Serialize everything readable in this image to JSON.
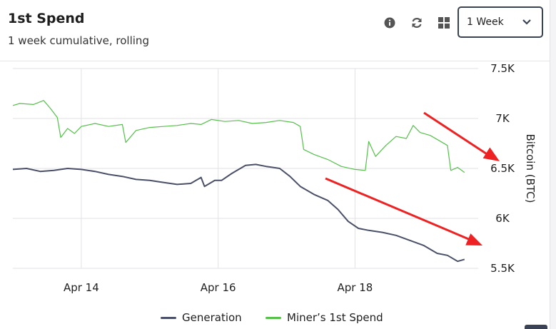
{
  "header": {
    "title": "1st Spend",
    "subtitle": "1 week cumulative, rolling",
    "icons": [
      "info-icon",
      "refresh-icon",
      "grid-icon"
    ],
    "period_select": {
      "value": "1 Week"
    }
  },
  "chart_data": {
    "type": "line",
    "ylabel": "Bitcoin (BTC)",
    "ylim": [
      5500,
      7500
    ],
    "y_ticks": [
      {
        "value": 7500,
        "label": "7.5K"
      },
      {
        "value": 7000,
        "label": "7K"
      },
      {
        "value": 6500,
        "label": "6.5K"
      },
      {
        "value": 6000,
        "label": "6K"
      },
      {
        "value": 5500,
        "label": "5.5K"
      }
    ],
    "xlim": [
      13.0,
      19.8
    ],
    "x_ticks": [
      {
        "value": 14,
        "label": "Apr 14"
      },
      {
        "value": 16,
        "label": "Apr 16"
      },
      {
        "value": 18,
        "label": "Apr 18"
      }
    ],
    "grid": true,
    "legend_position": "bottom",
    "series": [
      {
        "name": "Generation",
        "color": "#4a5068",
        "points": [
          [
            13.0,
            6490
          ],
          [
            13.2,
            6500
          ],
          [
            13.4,
            6470
          ],
          [
            13.6,
            6480
          ],
          [
            13.8,
            6500
          ],
          [
            14.0,
            6490
          ],
          [
            14.2,
            6470
          ],
          [
            14.4,
            6440
          ],
          [
            14.6,
            6420
          ],
          [
            14.8,
            6390
          ],
          [
            15.0,
            6380
          ],
          [
            15.2,
            6360
          ],
          [
            15.4,
            6340
          ],
          [
            15.6,
            6350
          ],
          [
            15.75,
            6410
          ],
          [
            15.8,
            6320
          ],
          [
            15.95,
            6380
          ],
          [
            16.05,
            6380
          ],
          [
            16.2,
            6450
          ],
          [
            16.4,
            6530
          ],
          [
            16.55,
            6540
          ],
          [
            16.7,
            6520
          ],
          [
            16.9,
            6500
          ],
          [
            17.05,
            6420
          ],
          [
            17.2,
            6320
          ],
          [
            17.4,
            6240
          ],
          [
            17.6,
            6180
          ],
          [
            17.75,
            6090
          ],
          [
            17.9,
            5970
          ],
          [
            18.05,
            5900
          ],
          [
            18.2,
            5880
          ],
          [
            18.4,
            5860
          ],
          [
            18.6,
            5830
          ],
          [
            18.8,
            5780
          ],
          [
            19.0,
            5730
          ],
          [
            19.2,
            5650
          ],
          [
            19.35,
            5630
          ],
          [
            19.5,
            5570
          ],
          [
            19.6,
            5590
          ]
        ]
      },
      {
        "name": "Miner’s 1st Spend",
        "color": "#55c04a",
        "points": [
          [
            13.0,
            7130
          ],
          [
            13.1,
            7150
          ],
          [
            13.3,
            7140
          ],
          [
            13.45,
            7180
          ],
          [
            13.55,
            7100
          ],
          [
            13.65,
            7010
          ],
          [
            13.7,
            6810
          ],
          [
            13.8,
            6900
          ],
          [
            13.9,
            6850
          ],
          [
            14.0,
            6920
          ],
          [
            14.2,
            6950
          ],
          [
            14.4,
            6920
          ],
          [
            14.6,
            6940
          ],
          [
            14.65,
            6760
          ],
          [
            14.8,
            6880
          ],
          [
            15.0,
            6910
          ],
          [
            15.2,
            6920
          ],
          [
            15.4,
            6930
          ],
          [
            15.6,
            6950
          ],
          [
            15.75,
            6940
          ],
          [
            15.9,
            6990
          ],
          [
            16.1,
            6970
          ],
          [
            16.3,
            6980
          ],
          [
            16.5,
            6950
          ],
          [
            16.7,
            6960
          ],
          [
            16.9,
            6980
          ],
          [
            17.1,
            6960
          ],
          [
            17.2,
            6920
          ],
          [
            17.25,
            6690
          ],
          [
            17.4,
            6640
          ],
          [
            17.6,
            6590
          ],
          [
            17.8,
            6520
          ],
          [
            18.0,
            6490
          ],
          [
            18.15,
            6480
          ],
          [
            18.2,
            6770
          ],
          [
            18.3,
            6620
          ],
          [
            18.45,
            6730
          ],
          [
            18.6,
            6820
          ],
          [
            18.75,
            6800
          ],
          [
            18.85,
            6930
          ],
          [
            18.95,
            6860
          ],
          [
            19.1,
            6830
          ],
          [
            19.25,
            6770
          ],
          [
            19.35,
            6730
          ],
          [
            19.4,
            6480
          ],
          [
            19.5,
            6510
          ],
          [
            19.6,
            6460
          ]
        ]
      }
    ]
  }
}
